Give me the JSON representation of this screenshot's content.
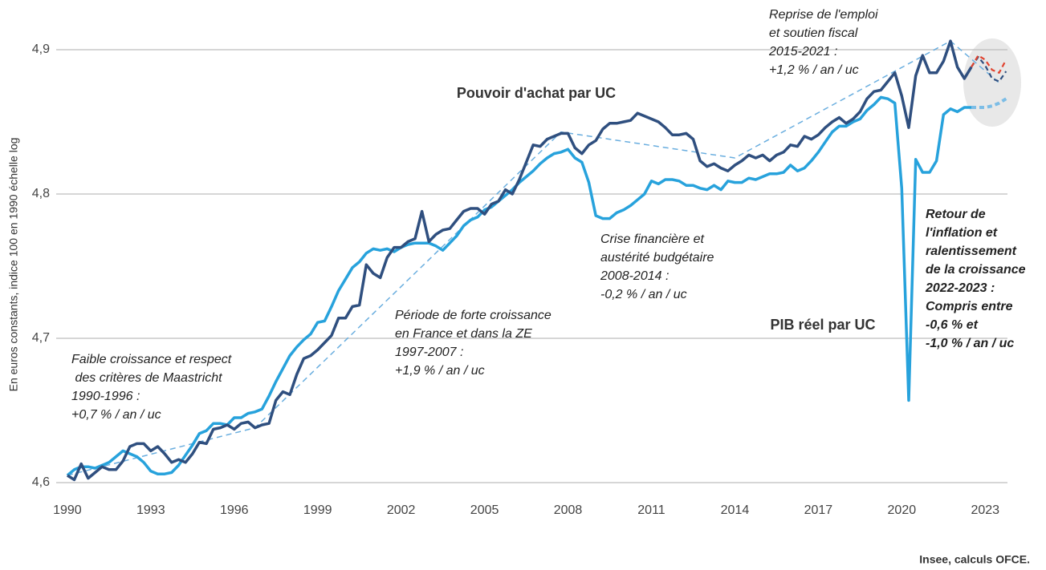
{
  "chart_data": {
    "type": "line",
    "y_label": "En euros constants, indice 100 en 1990 échelle log",
    "source": "Insee, calculs OFCE.",
    "xlim": [
      1989.6,
      2023.8
    ],
    "ylim": [
      4.59,
      4.92
    ],
    "xticks": [
      1990,
      1993,
      1996,
      1999,
      2002,
      2005,
      2008,
      2011,
      2014,
      2017,
      2020,
      2023
    ],
    "yticks": [
      {
        "value": 4.6,
        "label": "4,6"
      },
      {
        "value": 4.7,
        "label": "4,7"
      },
      {
        "value": 4.8,
        "label": "4,8"
      },
      {
        "value": 4.9,
        "label": "4,9"
      }
    ],
    "grid": true,
    "series": [
      {
        "name": "Pouvoir d'achat par UC",
        "color": "#2f4f7f",
        "x": [
          1990,
          1990.25,
          1990.5,
          1990.75,
          1991,
          1991.25,
          1991.5,
          1991.75,
          1992,
          1992.25,
          1992.5,
          1992.75,
          1993,
          1993.25,
          1993.5,
          1993.75,
          1994,
          1994.25,
          1994.5,
          1994.75,
          1995,
          1995.25,
          1995.5,
          1995.75,
          1996,
          1996.25,
          1996.5,
          1996.75,
          1997,
          1997.25,
          1997.5,
          1997.75,
          1998,
          1998.25,
          1998.5,
          1998.75,
          1999,
          1999.25,
          1999.5,
          1999.75,
          2000,
          2000.25,
          2000.5,
          2000.75,
          2001,
          2001.25,
          2001.5,
          2001.75,
          2002,
          2002.25,
          2002.5,
          2002.75,
          2003,
          2003.25,
          2003.5,
          2003.75,
          2004,
          2004.25,
          2004.5,
          2004.75,
          2005,
          2005.25,
          2005.5,
          2005.75,
          2006,
          2006.25,
          2006.5,
          2006.75,
          2007,
          2007.25,
          2007.5,
          2007.75,
          2008,
          2008.25,
          2008.5,
          2008.75,
          2009,
          2009.25,
          2009.5,
          2009.75,
          2010,
          2010.25,
          2010.5,
          2010.75,
          2011,
          2011.25,
          2011.5,
          2011.75,
          2012,
          2012.25,
          2012.5,
          2012.75,
          2013,
          2013.25,
          2013.5,
          2013.75,
          2014,
          2014.25,
          2014.5,
          2014.75,
          2015,
          2015.25,
          2015.5,
          2015.75,
          2016,
          2016.25,
          2016.5,
          2016.75,
          2017,
          2017.25,
          2017.5,
          2017.75,
          2018,
          2018.25,
          2018.5,
          2018.75,
          2019,
          2019.25,
          2019.5,
          2019.75,
          2020,
          2020.25,
          2020.5,
          2020.75,
          2021,
          2021.25,
          2021.5,
          2021.75,
          2022,
          2022.25,
          2022.5
        ],
        "values": [
          4.605,
          4.602,
          4.613,
          4.603,
          4.607,
          4.611,
          4.609,
          4.609,
          4.615,
          4.625,
          4.627,
          4.627,
          4.622,
          4.625,
          4.62,
          4.614,
          4.616,
          4.614,
          4.62,
          4.628,
          4.627,
          4.637,
          4.638,
          4.64,
          4.637,
          4.641,
          4.642,
          4.638,
          4.64,
          4.641,
          4.657,
          4.663,
          4.661,
          4.675,
          4.686,
          4.688,
          4.692,
          4.697,
          4.702,
          4.714,
          4.714,
          4.722,
          4.723,
          4.751,
          4.745,
          4.742,
          4.756,
          4.763,
          4.763,
          4.767,
          4.769,
          4.788,
          4.767,
          4.772,
          4.775,
          4.776,
          4.782,
          4.788,
          4.79,
          4.79,
          4.786,
          4.793,
          4.795,
          4.803,
          4.8,
          4.81,
          4.822,
          4.834,
          4.833,
          4.838,
          4.84,
          4.842,
          4.842,
          4.832,
          4.828,
          4.834,
          4.837,
          4.845,
          4.849,
          4.849,
          4.85,
          4.851,
          4.856,
          4.854,
          4.852,
          4.85,
          4.846,
          4.841,
          4.841,
          4.842,
          4.838,
          4.823,
          4.819,
          4.821,
          4.818,
          4.816,
          4.82,
          4.823,
          4.827,
          4.825,
          4.827,
          4.823,
          4.827,
          4.829,
          4.834,
          4.833,
          4.84,
          4.838,
          4.841,
          4.846,
          4.85,
          4.853,
          4.849,
          4.852,
          4.857,
          4.866,
          4.871,
          4.872,
          4.878,
          4.884,
          4.868,
          4.846,
          4.882,
          4.896,
          4.884,
          4.884,
          4.892,
          4.906,
          4.888,
          4.88,
          4.888
        ]
      },
      {
        "name": "PIB réel par UC",
        "color": "#27a2dc",
        "x": [
          1990,
          1990.25,
          1990.5,
          1990.75,
          1991,
          1991.25,
          1991.5,
          1991.75,
          1992,
          1992.25,
          1992.5,
          1992.75,
          1993,
          1993.25,
          1993.5,
          1993.75,
          1994,
          1994.25,
          1994.5,
          1994.75,
          1995,
          1995.25,
          1995.5,
          1995.75,
          1996,
          1996.25,
          1996.5,
          1996.75,
          1997,
          1997.25,
          1997.5,
          1997.75,
          1998,
          1998.25,
          1998.5,
          1998.75,
          1999,
          1999.25,
          1999.5,
          1999.75,
          2000,
          2000.25,
          2000.5,
          2000.75,
          2001,
          2001.25,
          2001.5,
          2001.75,
          2002,
          2002.25,
          2002.5,
          2002.75,
          2003,
          2003.25,
          2003.5,
          2003.75,
          2004,
          2004.25,
          2004.5,
          2004.75,
          2005,
          2005.25,
          2005.5,
          2005.75,
          2006,
          2006.25,
          2006.5,
          2006.75,
          2007,
          2007.25,
          2007.5,
          2007.75,
          2008,
          2008.25,
          2008.5,
          2008.75,
          2009,
          2009.25,
          2009.5,
          2009.75,
          2010,
          2010.25,
          2010.5,
          2010.75,
          2011,
          2011.25,
          2011.5,
          2011.75,
          2012,
          2012.25,
          2012.5,
          2012.75,
          2013,
          2013.25,
          2013.5,
          2013.75,
          2014,
          2014.25,
          2014.5,
          2014.75,
          2015,
          2015.25,
          2015.5,
          2015.75,
          2016,
          2016.25,
          2016.5,
          2016.75,
          2017,
          2017.25,
          2017.5,
          2017.75,
          2018,
          2018.25,
          2018.5,
          2018.75,
          2019,
          2019.25,
          2019.5,
          2019.75,
          2020,
          2020.25,
          2020.5,
          2020.75,
          2021,
          2021.25,
          2021.5,
          2021.75,
          2022,
          2022.25,
          2022.5
        ],
        "values": [
          4.605,
          4.609,
          4.611,
          4.611,
          4.61,
          4.612,
          4.614,
          4.618,
          4.622,
          4.62,
          4.618,
          4.614,
          4.608,
          4.606,
          4.606,
          4.607,
          4.612,
          4.619,
          4.626,
          4.634,
          4.636,
          4.641,
          4.641,
          4.64,
          4.645,
          4.645,
          4.648,
          4.649,
          4.651,
          4.66,
          4.67,
          4.679,
          4.688,
          4.694,
          4.699,
          4.703,
          4.711,
          4.712,
          4.722,
          4.733,
          4.741,
          4.749,
          4.753,
          4.759,
          4.762,
          4.761,
          4.762,
          4.76,
          4.763,
          4.765,
          4.766,
          4.766,
          4.766,
          4.764,
          4.761,
          4.766,
          4.771,
          4.778,
          4.782,
          4.784,
          4.789,
          4.791,
          4.795,
          4.799,
          4.803,
          4.808,
          4.812,
          4.816,
          4.821,
          4.825,
          4.828,
          4.829,
          4.831,
          4.825,
          4.822,
          4.808,
          4.785,
          4.783,
          4.783,
          4.787,
          4.789,
          4.792,
          4.796,
          4.8,
          4.809,
          4.807,
          4.81,
          4.81,
          4.809,
          4.806,
          4.806,
          4.804,
          4.803,
          4.806,
          4.803,
          4.809,
          4.808,
          4.808,
          4.811,
          4.81,
          4.812,
          4.814,
          4.814,
          4.815,
          4.82,
          4.816,
          4.818,
          4.823,
          4.829,
          4.836,
          4.843,
          4.847,
          4.847,
          4.85,
          4.852,
          4.858,
          4.862,
          4.867,
          4.866,
          4.863,
          4.804,
          4.657,
          4.824,
          4.815,
          4.815,
          4.823,
          4.855,
          4.859,
          4.857,
          4.86,
          4.86
        ]
      }
    ],
    "forecasts": [
      {
        "color": "#2f4f7f",
        "x": [
          2022.5,
          2022.75,
          2023,
          2023.25,
          2023.5,
          2023.75
        ],
        "values": [
          4.888,
          4.895,
          4.889,
          4.88,
          4.878,
          4.885
        ]
      },
      {
        "color": "#e0432f",
        "x": [
          2022.5,
          2022.75,
          2023,
          2023.25,
          2023.5,
          2023.75
        ],
        "values": [
          4.888,
          4.896,
          4.893,
          4.886,
          4.884,
          4.893
        ]
      },
      {
        "color": "#7cbde6",
        "x": [
          2022.5,
          2022.75,
          2023,
          2023.25,
          2023.5,
          2023.75
        ],
        "values": [
          4.86,
          4.86,
          4.86,
          4.861,
          4.863,
          4.866
        ]
      }
    ],
    "trend": {
      "color": "#6aaedf",
      "x": [
        1990,
        1996.75,
        2007.75,
        2014,
        2021.75,
        2023.5
      ],
      "values": [
        4.605,
        4.638,
        4.843,
        4.825,
        4.906,
        4.877
      ]
    },
    "annotations": [
      {
        "lines": [
          "Faible croissance et respect",
          " des critères de Maastricht",
          "1990-1996 :",
          "+0,7 % / an / uc"
        ]
      },
      {
        "lines": [
          "Période de forte croissance",
          "en France et dans la ZE",
          "1997-2007 :",
          "+1,9 % / an / uc"
        ]
      },
      {
        "lines": [
          "Crise financière et",
          "austérité budgétaire",
          "2008-2014 :",
          "-0,2 % / an / uc"
        ]
      },
      {
        "lines": [
          "Reprise de l'emploi",
          "et soutien fiscal",
          "2015-2021 :",
          "+1,2 % / an / uc"
        ]
      },
      {
        "lines": [
          "Retour de",
          "l'inflation et",
          "ralentissement",
          "de la croissance",
          "2022-2023 :",
          "Compris entre",
          "-0,6 % et",
          "-1,0 % / an / uc"
        ]
      }
    ]
  }
}
